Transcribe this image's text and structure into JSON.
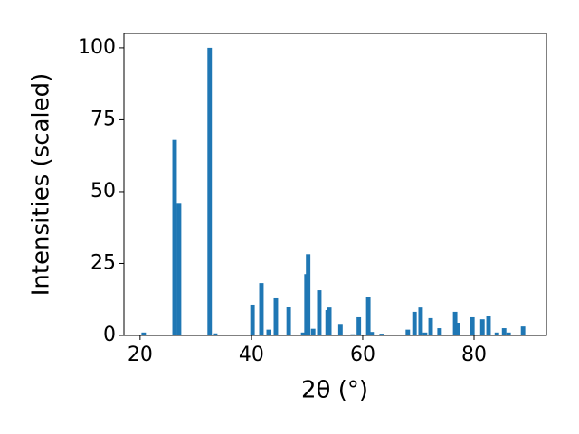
{
  "chart_data": {
    "type": "bar",
    "xlabel": "2θ (°)",
    "ylabel": "Intensities (scaled)",
    "color": "#1f77b4",
    "x": [
      20.65,
      26.2,
      27.0,
      32.5,
      33.5,
      40.2,
      41.8,
      43.1,
      44.4,
      46.7,
      49.3,
      49.9,
      50.2,
      51.1,
      52.2,
      53.7,
      54.0,
      56.0,
      58.2,
      59.3,
      61.0,
      61.6,
      63.4,
      64.7,
      68.1,
      69.3,
      70.4,
      71.2,
      72.2,
      73.8,
      76.6,
      77.1,
      79.7,
      81.5,
      82.6,
      84.1,
      85.4,
      86.2,
      88.8
    ],
    "values": [
      1,
      68,
      45.8,
      100,
      0.7,
      10.7,
      18.2,
      2,
      12.9,
      10,
      1,
      21.3,
      28.2,
      2.3,
      15.7,
      8.8,
      9.7,
      4,
      0.4,
      6.3,
      13.5,
      1.2,
      0.6,
      0.3,
      2,
      8.2,
      9.7,
      1,
      6,
      2.5,
      8.2,
      4.4,
      6.3,
      5.6,
      6.6,
      1,
      2.5,
      1,
      3.1
    ],
    "xlim": [
      17.1,
      93.0
    ],
    "xticks": [
      20,
      40,
      60,
      80
    ],
    "ylim": [
      0,
      105
    ],
    "yticks": [
      0,
      25,
      50,
      75,
      100
    ]
  }
}
